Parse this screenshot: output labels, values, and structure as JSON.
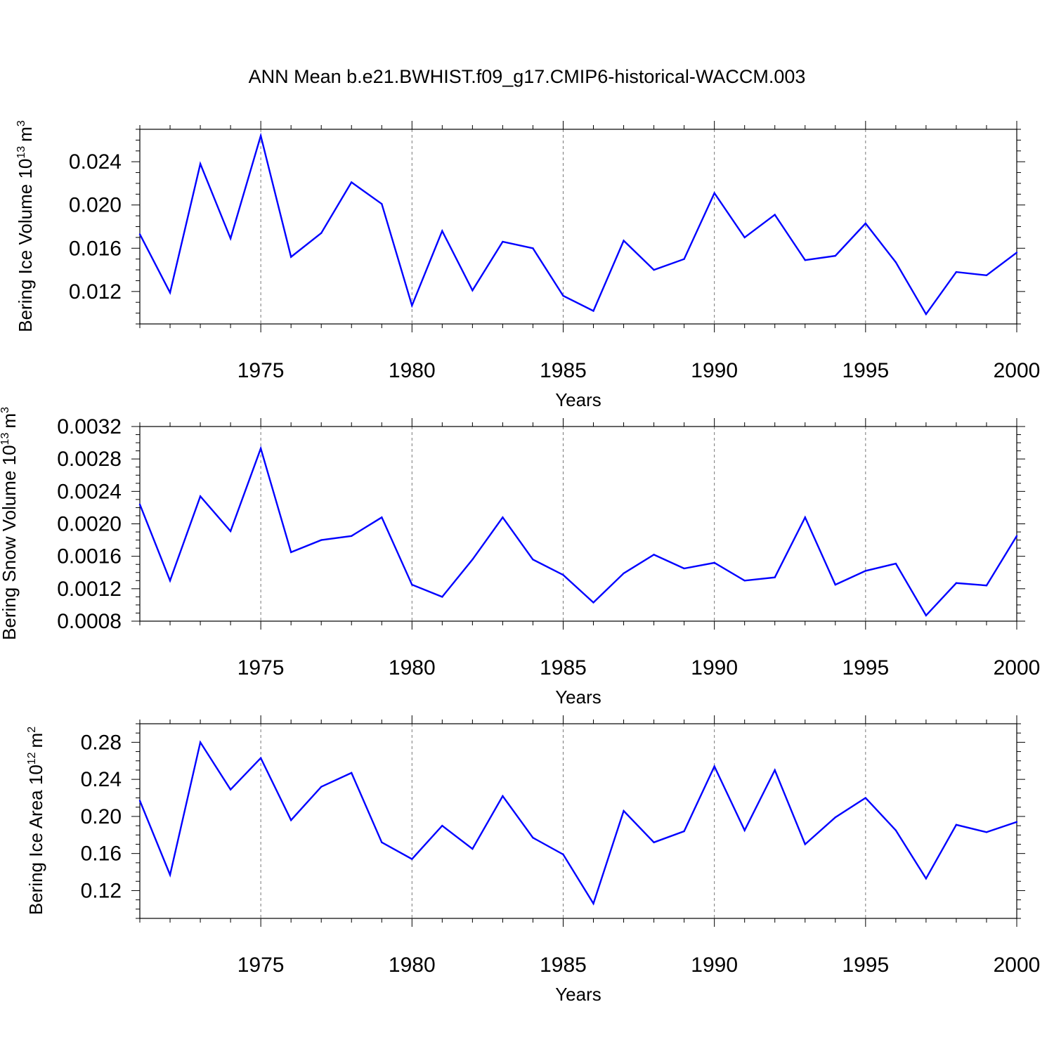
{
  "title": "ANN Mean b.e21.BWHIST.f09_g17.CMIP6-historical-WACCM.003",
  "colors": {
    "series": "#0000ff",
    "axis": "#000000",
    "grid": "#777777",
    "background": "#ffffff"
  },
  "chart_data": [
    {
      "type": "line",
      "ylabel": {
        "text": "Bering Ice Volume 10",
        "exp": "13",
        "unit": "m",
        "unit_exp": "3"
      },
      "xlabel": "Years",
      "x": [
        1971,
        1972,
        1973,
        1974,
        1975,
        1976,
        1977,
        1978,
        1979,
        1980,
        1981,
        1982,
        1983,
        1984,
        1985,
        1986,
        1987,
        1988,
        1989,
        1990,
        1991,
        1992,
        1993,
        1994,
        1995,
        1996,
        1997,
        1998,
        1999,
        2000
      ],
      "values": [
        0.0173,
        0.0119,
        0.0238,
        0.0169,
        0.0264,
        0.0152,
        0.0174,
        0.0221,
        0.0201,
        0.0107,
        0.0176,
        0.0121,
        0.0166,
        0.016,
        0.0116,
        0.0102,
        0.0167,
        0.014,
        0.015,
        0.0211,
        0.017,
        0.0191,
        0.0149,
        0.0153,
        0.0183,
        0.0147,
        0.0099,
        0.0138,
        0.0135,
        0.0156
      ],
      "xlim": [
        1971,
        2000
      ],
      "ylim": [
        0.009,
        0.027
      ],
      "yticks": [
        0.012,
        0.016,
        0.02,
        0.024
      ],
      "ytick_labels": [
        "0.012",
        "0.016",
        "0.020",
        "0.024"
      ],
      "xticks": [
        1975,
        1980,
        1985,
        1990,
        1995,
        2000
      ],
      "xtick_labels": [
        "1975",
        "1980",
        "1985",
        "1990",
        "1995",
        "2000"
      ],
      "grid": "vertical dashed at major x ticks"
    },
    {
      "type": "line",
      "ylabel": {
        "text": "Bering Snow Volume 10",
        "exp": "13",
        "unit": "m",
        "unit_exp": "3"
      },
      "xlabel": "Years",
      "x": [
        1971,
        1972,
        1973,
        1974,
        1975,
        1976,
        1977,
        1978,
        1979,
        1980,
        1981,
        1982,
        1983,
        1984,
        1985,
        1986,
        1987,
        1988,
        1989,
        1990,
        1991,
        1992,
        1993,
        1994,
        1995,
        1996,
        1997,
        1998,
        1999,
        2000
      ],
      "values": [
        0.00224,
        0.0013,
        0.00234,
        0.00191,
        0.00293,
        0.00165,
        0.0018,
        0.00185,
        0.00208,
        0.00125,
        0.0011,
        0.00156,
        0.00208,
        0.00156,
        0.00137,
        0.00103,
        0.00139,
        0.00162,
        0.00145,
        0.00152,
        0.0013,
        0.00134,
        0.00208,
        0.00125,
        0.00142,
        0.00151,
        0.00087,
        0.00127,
        0.00124,
        0.00185
      ],
      "xlim": [
        1971,
        2000
      ],
      "ylim": [
        0.0008,
        0.0032
      ],
      "yticks": [
        0.0008,
        0.0012,
        0.0016,
        0.002,
        0.0024,
        0.0028,
        0.0032
      ],
      "ytick_labels": [
        "0.0008",
        "0.0012",
        "0.0016",
        "0.0020",
        "0.0024",
        "0.0028",
        "0.0032"
      ],
      "xticks": [
        1975,
        1980,
        1985,
        1990,
        1995,
        2000
      ],
      "xtick_labels": [
        "1975",
        "1980",
        "1985",
        "1990",
        "1995",
        "2000"
      ],
      "grid": "vertical dashed at major x ticks"
    },
    {
      "type": "line",
      "ylabel": {
        "text": "Bering Ice Area 10",
        "exp": "12",
        "unit": "m",
        "unit_exp": "2"
      },
      "xlabel": "Years",
      "x": [
        1971,
        1972,
        1973,
        1974,
        1975,
        1976,
        1977,
        1978,
        1979,
        1980,
        1981,
        1982,
        1983,
        1984,
        1985,
        1986,
        1987,
        1988,
        1989,
        1990,
        1991,
        1992,
        1993,
        1994,
        1995,
        1996,
        1997,
        1998,
        1999,
        2000
      ],
      "values": [
        0.217,
        0.137,
        0.28,
        0.229,
        0.263,
        0.196,
        0.232,
        0.247,
        0.172,
        0.154,
        0.19,
        0.165,
        0.222,
        0.177,
        0.159,
        0.106,
        0.206,
        0.172,
        0.184,
        0.254,
        0.185,
        0.25,
        0.17,
        0.199,
        0.22,
        0.185,
        0.133,
        0.191,
        0.183,
        0.194
      ],
      "xlim": [
        1971,
        2000
      ],
      "ylim": [
        0.09,
        0.3
      ],
      "yticks": [
        0.12,
        0.16,
        0.2,
        0.24,
        0.28
      ],
      "ytick_labels": [
        "0.12",
        "0.16",
        "0.20",
        "0.24",
        "0.28"
      ],
      "xticks": [
        1975,
        1980,
        1985,
        1990,
        1995,
        2000
      ],
      "xtick_labels": [
        "1975",
        "1980",
        "1985",
        "1990",
        "1995",
        "2000"
      ],
      "grid": "vertical dashed at major x ticks"
    }
  ]
}
